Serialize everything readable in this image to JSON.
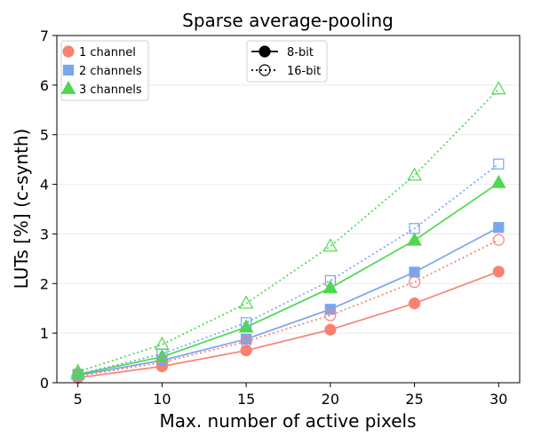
{
  "chart_data": {
    "type": "line",
    "title": "Sparse average-pooling",
    "xlabel": "Max. number of active pixels",
    "ylabel": "LUTs [%] (c-synth)",
    "x": [
      5,
      10,
      15,
      20,
      25,
      30
    ],
    "xlim": [
      3.75,
      31.25
    ],
    "ylim": [
      0,
      7
    ],
    "xticks": [
      5,
      10,
      15,
      20,
      25,
      30
    ],
    "yticks": [
      0,
      1,
      2,
      3,
      4,
      5,
      6,
      7
    ],
    "grid": "horizontal",
    "series": [
      {
        "name": "1 channel",
        "precision": "8-bit",
        "color": "#fa8072",
        "marker": "circle",
        "filled": true,
        "style": "solid",
        "values": [
          0.1,
          0.33,
          0.65,
          1.07,
          1.6,
          2.24
        ]
      },
      {
        "name": "2 channels",
        "precision": "8-bit",
        "color": "#7aa6ee",
        "marker": "square",
        "filled": true,
        "style": "solid",
        "values": [
          0.15,
          0.45,
          0.88,
          1.48,
          2.23,
          3.13
        ]
      },
      {
        "name": "3 channels",
        "precision": "8-bit",
        "color": "#4cd94c",
        "marker": "triangle",
        "filled": true,
        "style": "solid",
        "values": [
          0.17,
          0.52,
          1.12,
          1.91,
          2.87,
          4.03
        ]
      },
      {
        "name": "1 channel",
        "precision": "16-bit",
        "color": "#fa8072",
        "marker": "circle",
        "filled": false,
        "style": "dotted",
        "values": [
          0.13,
          0.41,
          0.83,
          1.36,
          2.03,
          2.88
        ]
      },
      {
        "name": "2 channels",
        "precision": "16-bit",
        "color": "#7aa6ee",
        "marker": "square",
        "filled": false,
        "style": "dotted",
        "values": [
          0.17,
          0.58,
          1.21,
          2.06,
          3.11,
          4.41
        ]
      },
      {
        "name": "3 channels",
        "precision": "16-bit",
        "color": "#4cd94c",
        "marker": "triangle",
        "filled": false,
        "style": "dotted",
        "values": [
          0.22,
          0.77,
          1.6,
          2.75,
          4.18,
          5.92
        ]
      }
    ],
    "legend_channels": {
      "placement": "top-left",
      "entries": [
        {
          "label": "1 channel",
          "color": "#fa8072",
          "marker": "circle"
        },
        {
          "label": "2 channels",
          "color": "#7aa6ee",
          "marker": "square"
        },
        {
          "label": "3 channels",
          "color": "#4cd94c",
          "marker": "triangle"
        }
      ]
    },
    "legend_precision": {
      "placement": "top-center",
      "entries": [
        {
          "label": "8-bit",
          "style": "solid",
          "filled": true
        },
        {
          "label": "16-bit",
          "style": "dotted",
          "filled": false
        }
      ]
    }
  }
}
